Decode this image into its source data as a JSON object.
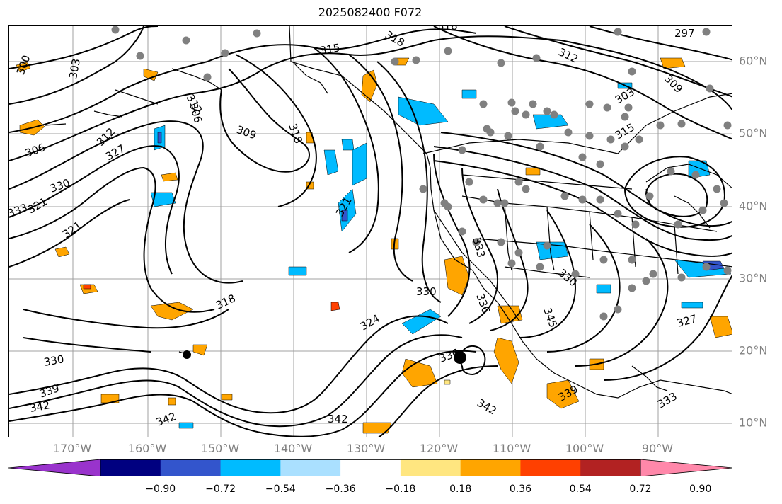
{
  "title": "2025082400 F072",
  "longitude_labels": [
    "170°W",
    "160°W",
    "150°W",
    "140°W",
    "130°W",
    "120°W",
    "110°W",
    "100°W",
    "90°W"
  ],
  "latitude_labels": [
    "60°N",
    "50°N",
    "40°N",
    "30°N",
    "20°N",
    "10°N"
  ],
  "colorbar": {
    "colors": [
      "#9933cc",
      "#000080",
      "#3355cc",
      "#00bbff",
      "#aae0ff",
      "#ffffff",
      "#ffe680",
      "#ffa500",
      "#ff4000",
      "#b22222",
      "#ff88aa"
    ],
    "tick_labels": [
      "−0.90",
      "−0.72",
      "−0.54",
      "−0.36",
      "−0.18",
      "0.18",
      "0.36",
      "0.54",
      "0.72",
      "0.90"
    ]
  },
  "contour_labels": [
    "300",
    "303",
    "303",
    "306",
    "306",
    "309",
    "309",
    "312",
    "312",
    "312",
    "315",
    "315",
    "318",
    "318",
    "318",
    "318",
    "321",
    "321",
    "321",
    "324",
    "327",
    "327",
    "330",
    "330",
    "330",
    "330",
    "333",
    "333",
    "333",
    "336",
    "336",
    "339",
    "339",
    "342",
    "342",
    "342",
    "342",
    "345",
    "297"
  ],
  "fill_colors": {
    "orange": "#ffa500",
    "light_blue": "#00bbff",
    "deep_blue": "#3355cc",
    "red": "#ff4000",
    "yellow": "#ffe680"
  },
  "marker_color": "#808080"
}
